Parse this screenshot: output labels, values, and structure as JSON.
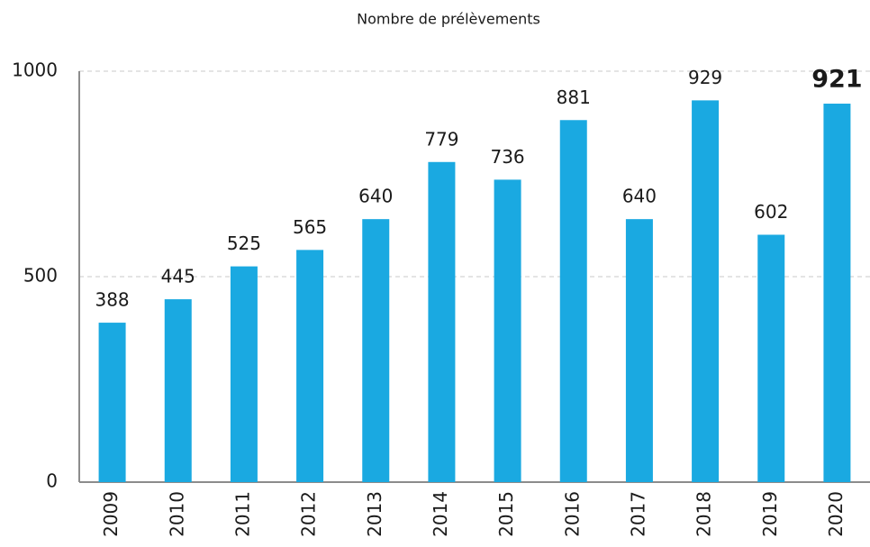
{
  "chart_data": {
    "type": "bar",
    "title": "Nombre de prélèvements",
    "categories": [
      "2009",
      "2010",
      "2011",
      "2012",
      "2013",
      "2014",
      "2015",
      "2016",
      "2017",
      "2018",
      "2019",
      "2020"
    ],
    "values": [
      388,
      445,
      525,
      565,
      640,
      779,
      736,
      881,
      640,
      929,
      602,
      921
    ],
    "color": "#1aa9e1",
    "ylim": [
      0,
      1000
    ],
    "yticks": [
      0,
      500,
      1000
    ],
    "grid": true
  }
}
